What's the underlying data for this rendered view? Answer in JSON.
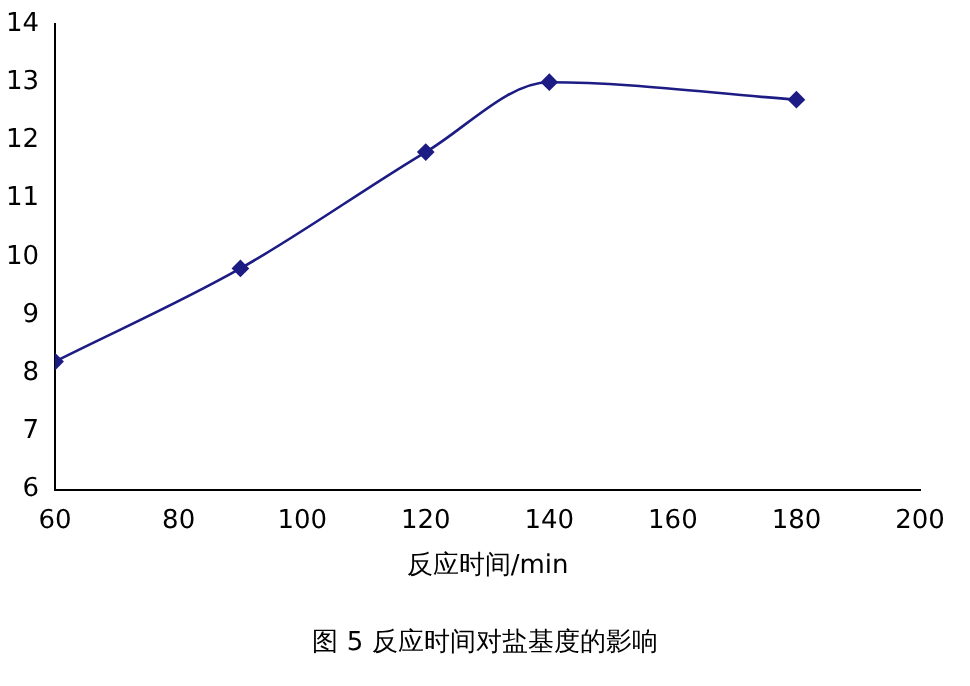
{
  "chart_data": {
    "type": "line",
    "xlabel": "反应时间/min",
    "annotations": [
      "图 5 反应时间对盐基度的影响"
    ],
    "x": [
      60,
      90,
      120,
      140,
      180
    ],
    "series": [
      {
        "color": "#1c1c84",
        "values": [
          8.2,
          9.8,
          11.8,
          13.0,
          12.7
        ]
      }
    ],
    "xlim": [
      60,
      200
    ],
    "xticks": [
      60,
      80,
      100,
      120,
      140,
      160,
      180,
      200
    ],
    "ylim": [
      6,
      14
    ],
    "yticks": [
      6,
      7,
      8,
      9,
      10,
      11,
      12,
      13,
      14
    ],
    "grid": false,
    "legend": false,
    "marker": "diamond",
    "line_style": "solid"
  }
}
